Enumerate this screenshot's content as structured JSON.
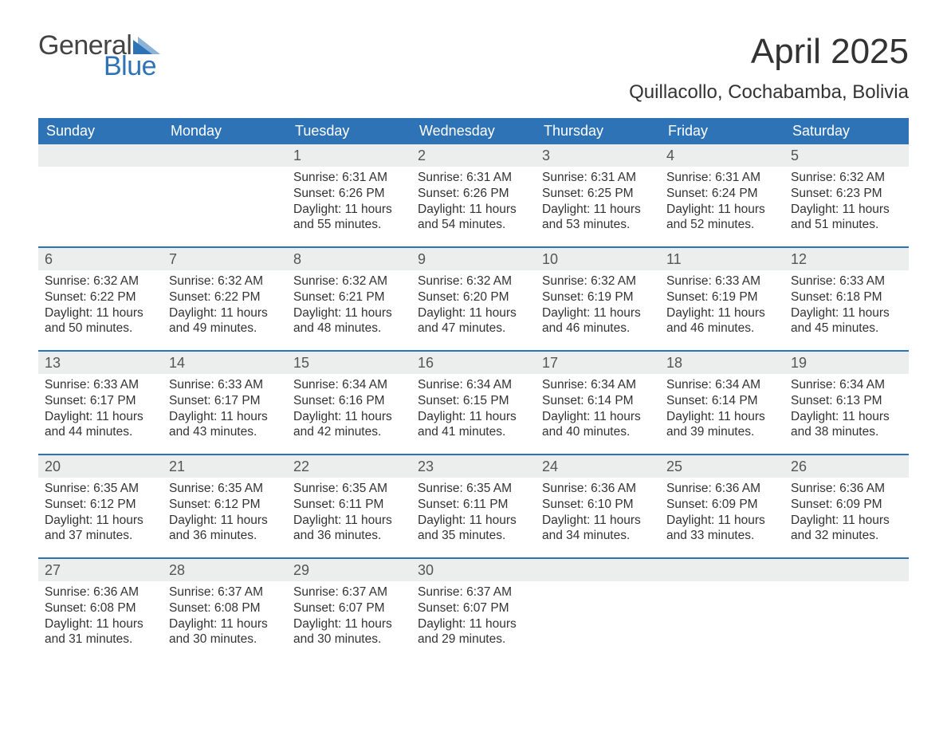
{
  "logo": {
    "word1": "General",
    "word2": "Blue",
    "text_color": "#444444",
    "accent_color": "#2d73b6"
  },
  "title": "April 2025",
  "location": "Quillacollo, Cochabamba, Bolivia",
  "colors": {
    "header_bg": "#2d73b6",
    "header_text": "#ffffff",
    "daynum_bg": "#eceded",
    "daynum_text": "#555555",
    "body_text": "#333333",
    "page_bg": "#ffffff",
    "week_border": "#2d73b6"
  },
  "fonts": {
    "title_size_pt": 33,
    "location_size_pt": 18,
    "weekday_size_pt": 14,
    "body_size_pt": 11.5
  },
  "weekdays": [
    "Sunday",
    "Monday",
    "Tuesday",
    "Wednesday",
    "Thursday",
    "Friday",
    "Saturday"
  ],
  "weeks": [
    [
      {
        "blank": true
      },
      {
        "blank": true
      },
      {
        "n": "1",
        "sunrise": "Sunrise: 6:31 AM",
        "sunset": "Sunset: 6:26 PM",
        "d1": "Daylight: 11 hours",
        "d2": "and 55 minutes."
      },
      {
        "n": "2",
        "sunrise": "Sunrise: 6:31 AM",
        "sunset": "Sunset: 6:26 PM",
        "d1": "Daylight: 11 hours",
        "d2": "and 54 minutes."
      },
      {
        "n": "3",
        "sunrise": "Sunrise: 6:31 AM",
        "sunset": "Sunset: 6:25 PM",
        "d1": "Daylight: 11 hours",
        "d2": "and 53 minutes."
      },
      {
        "n": "4",
        "sunrise": "Sunrise: 6:31 AM",
        "sunset": "Sunset: 6:24 PM",
        "d1": "Daylight: 11 hours",
        "d2": "and 52 minutes."
      },
      {
        "n": "5",
        "sunrise": "Sunrise: 6:32 AM",
        "sunset": "Sunset: 6:23 PM",
        "d1": "Daylight: 11 hours",
        "d2": "and 51 minutes."
      }
    ],
    [
      {
        "n": "6",
        "sunrise": "Sunrise: 6:32 AM",
        "sunset": "Sunset: 6:22 PM",
        "d1": "Daylight: 11 hours",
        "d2": "and 50 minutes."
      },
      {
        "n": "7",
        "sunrise": "Sunrise: 6:32 AM",
        "sunset": "Sunset: 6:22 PM",
        "d1": "Daylight: 11 hours",
        "d2": "and 49 minutes."
      },
      {
        "n": "8",
        "sunrise": "Sunrise: 6:32 AM",
        "sunset": "Sunset: 6:21 PM",
        "d1": "Daylight: 11 hours",
        "d2": "and 48 minutes."
      },
      {
        "n": "9",
        "sunrise": "Sunrise: 6:32 AM",
        "sunset": "Sunset: 6:20 PM",
        "d1": "Daylight: 11 hours",
        "d2": "and 47 minutes."
      },
      {
        "n": "10",
        "sunrise": "Sunrise: 6:32 AM",
        "sunset": "Sunset: 6:19 PM",
        "d1": "Daylight: 11 hours",
        "d2": "and 46 minutes."
      },
      {
        "n": "11",
        "sunrise": "Sunrise: 6:33 AM",
        "sunset": "Sunset: 6:19 PM",
        "d1": "Daylight: 11 hours",
        "d2": "and 46 minutes."
      },
      {
        "n": "12",
        "sunrise": "Sunrise: 6:33 AM",
        "sunset": "Sunset: 6:18 PM",
        "d1": "Daylight: 11 hours",
        "d2": "and 45 minutes."
      }
    ],
    [
      {
        "n": "13",
        "sunrise": "Sunrise: 6:33 AM",
        "sunset": "Sunset: 6:17 PM",
        "d1": "Daylight: 11 hours",
        "d2": "and 44 minutes."
      },
      {
        "n": "14",
        "sunrise": "Sunrise: 6:33 AM",
        "sunset": "Sunset: 6:17 PM",
        "d1": "Daylight: 11 hours",
        "d2": "and 43 minutes."
      },
      {
        "n": "15",
        "sunrise": "Sunrise: 6:34 AM",
        "sunset": "Sunset: 6:16 PM",
        "d1": "Daylight: 11 hours",
        "d2": "and 42 minutes."
      },
      {
        "n": "16",
        "sunrise": "Sunrise: 6:34 AM",
        "sunset": "Sunset: 6:15 PM",
        "d1": "Daylight: 11 hours",
        "d2": "and 41 minutes."
      },
      {
        "n": "17",
        "sunrise": "Sunrise: 6:34 AM",
        "sunset": "Sunset: 6:14 PM",
        "d1": "Daylight: 11 hours",
        "d2": "and 40 minutes."
      },
      {
        "n": "18",
        "sunrise": "Sunrise: 6:34 AM",
        "sunset": "Sunset: 6:14 PM",
        "d1": "Daylight: 11 hours",
        "d2": "and 39 minutes."
      },
      {
        "n": "19",
        "sunrise": "Sunrise: 6:34 AM",
        "sunset": "Sunset: 6:13 PM",
        "d1": "Daylight: 11 hours",
        "d2": "and 38 minutes."
      }
    ],
    [
      {
        "n": "20",
        "sunrise": "Sunrise: 6:35 AM",
        "sunset": "Sunset: 6:12 PM",
        "d1": "Daylight: 11 hours",
        "d2": "and 37 minutes."
      },
      {
        "n": "21",
        "sunrise": "Sunrise: 6:35 AM",
        "sunset": "Sunset: 6:12 PM",
        "d1": "Daylight: 11 hours",
        "d2": "and 36 minutes."
      },
      {
        "n": "22",
        "sunrise": "Sunrise: 6:35 AM",
        "sunset": "Sunset: 6:11 PM",
        "d1": "Daylight: 11 hours",
        "d2": "and 36 minutes."
      },
      {
        "n": "23",
        "sunrise": "Sunrise: 6:35 AM",
        "sunset": "Sunset: 6:11 PM",
        "d1": "Daylight: 11 hours",
        "d2": "and 35 minutes."
      },
      {
        "n": "24",
        "sunrise": "Sunrise: 6:36 AM",
        "sunset": "Sunset: 6:10 PM",
        "d1": "Daylight: 11 hours",
        "d2": "and 34 minutes."
      },
      {
        "n": "25",
        "sunrise": "Sunrise: 6:36 AM",
        "sunset": "Sunset: 6:09 PM",
        "d1": "Daylight: 11 hours",
        "d2": "and 33 minutes."
      },
      {
        "n": "26",
        "sunrise": "Sunrise: 6:36 AM",
        "sunset": "Sunset: 6:09 PM",
        "d1": "Daylight: 11 hours",
        "d2": "and 32 minutes."
      }
    ],
    [
      {
        "n": "27",
        "sunrise": "Sunrise: 6:36 AM",
        "sunset": "Sunset: 6:08 PM",
        "d1": "Daylight: 11 hours",
        "d2": "and 31 minutes."
      },
      {
        "n": "28",
        "sunrise": "Sunrise: 6:37 AM",
        "sunset": "Sunset: 6:08 PM",
        "d1": "Daylight: 11 hours",
        "d2": "and 30 minutes."
      },
      {
        "n": "29",
        "sunrise": "Sunrise: 6:37 AM",
        "sunset": "Sunset: 6:07 PM",
        "d1": "Daylight: 11 hours",
        "d2": "and 30 minutes."
      },
      {
        "n": "30",
        "sunrise": "Sunrise: 6:37 AM",
        "sunset": "Sunset: 6:07 PM",
        "d1": "Daylight: 11 hours",
        "d2": "and 29 minutes."
      },
      {
        "blank": true
      },
      {
        "blank": true
      },
      {
        "blank": true
      }
    ]
  ]
}
